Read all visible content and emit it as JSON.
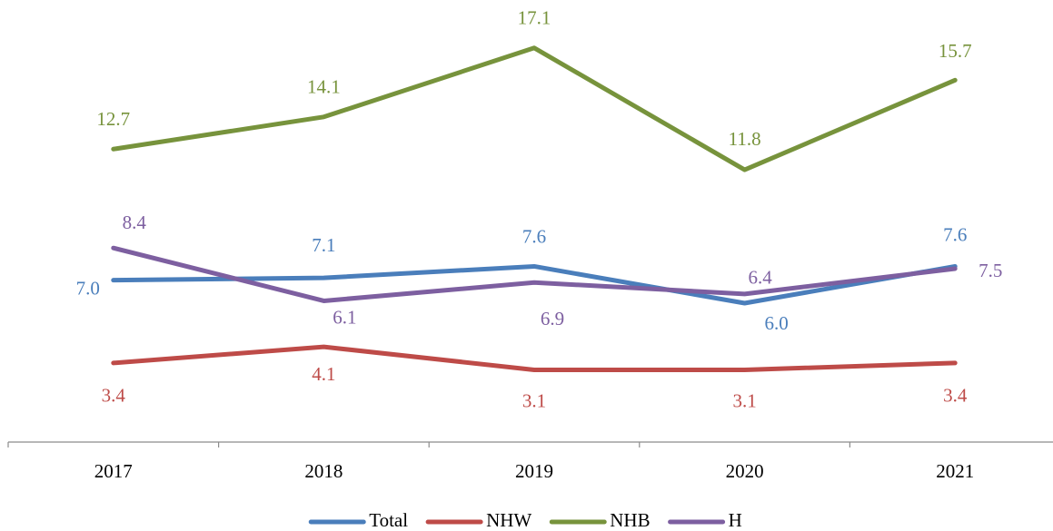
{
  "chart_data": {
    "type": "line",
    "categories": [
      "2017",
      "2018",
      "2019",
      "2020",
      "2021"
    ],
    "ylim": [
      0,
      18
    ],
    "legend": "bottom",
    "series": [
      {
        "name": "Total",
        "color": "#4a7ebb",
        "values": [
          7.0,
          7.1,
          7.6,
          6.0,
          7.6
        ],
        "value_labels": [
          "7.0",
          "7.1",
          "7.6",
          "6.0",
          "7.6"
        ]
      },
      {
        "name": "NHW",
        "color": "#be4b48",
        "values": [
          3.4,
          4.1,
          3.1,
          3.1,
          3.4
        ],
        "value_labels": [
          "3.4",
          "4.1",
          "3.1",
          "3.1",
          "3.4"
        ]
      },
      {
        "name": "NHB",
        "color": "#77933c",
        "values": [
          12.7,
          14.1,
          17.1,
          11.8,
          15.7
        ],
        "value_labels": [
          "12.7",
          "14.1",
          "17.1",
          "11.8",
          "15.7"
        ]
      },
      {
        "name": "H",
        "color": "#7d5fa0",
        "values": [
          8.4,
          6.1,
          6.9,
          6.4,
          7.5
        ],
        "value_labels": [
          "8.4",
          "6.1",
          "6.9",
          "6.4",
          "7.5"
        ]
      }
    ]
  }
}
